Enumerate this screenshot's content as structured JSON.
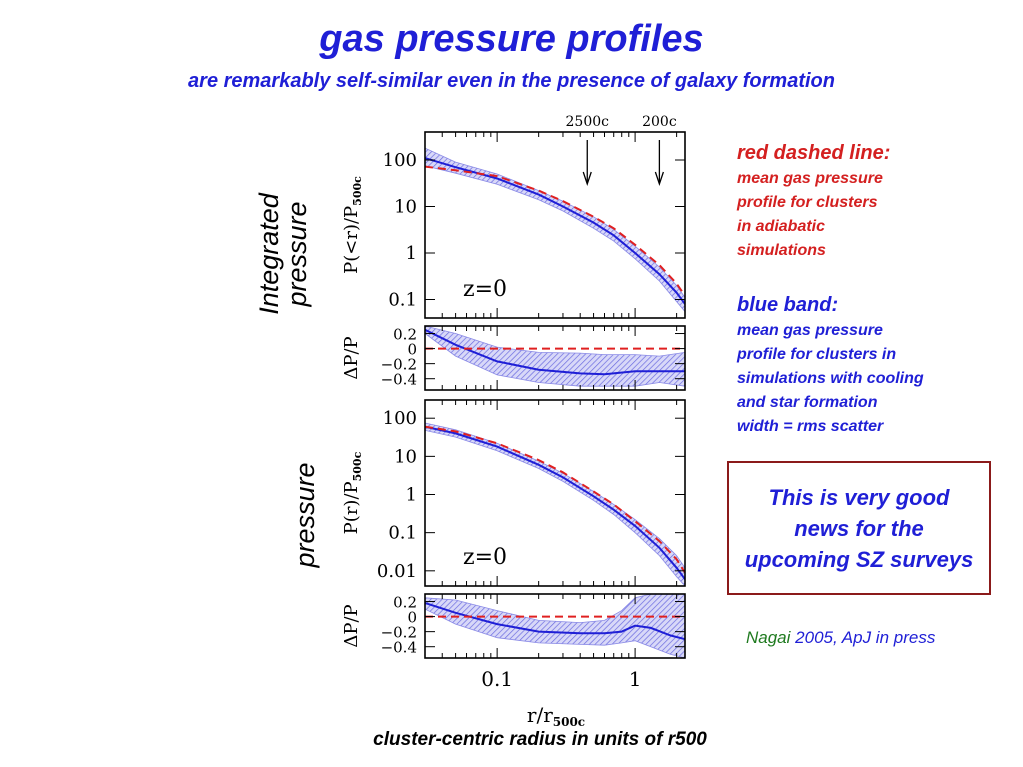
{
  "title": "gas pressure profiles",
  "subtitle": "are remarkably self-similar even in the presence of galaxy formation",
  "side_labels": {
    "integrated": [
      "Integrated",
      "pressure"
    ],
    "pressure": "pressure"
  },
  "notes": {
    "red_title": "red dashed line:",
    "red_lines": [
      "mean gas pressure",
      "profile for clusters",
      "in adiabatic",
      "simulations"
    ],
    "blue_title": "blue band:",
    "blue_lines": [
      "mean gas pressure",
      "profile for clusters in",
      "simulations with cooling",
      "and star formation",
      "width = rms scatter"
    ]
  },
  "box_text": "This is very good news for the upcoming SZ surveys",
  "reference": {
    "author": "Nagai",
    "rest": "2005, ApJ in press"
  },
  "caption": "cluster-centric radius in units of r500",
  "colors": {
    "title_blue": "#1f1fd6",
    "note_red": "#d42020",
    "box_border": "#8b1a1a",
    "ref_green": "#1f7a1f",
    "band": "#8a8ae6",
    "line_blue": "#1f1fd6",
    "dash_red": "#e02020"
  },
  "chart_data": [
    {
      "type": "line",
      "panel": "integrated",
      "xlabel": "r/r500c",
      "ylabel": "P(<r)/P500c",
      "xscale": "log",
      "yscale": "log",
      "xlim": [
        0.03,
        2.3
      ],
      "ylim": [
        0.04,
        400
      ],
      "yticks": [
        "100",
        "10",
        "1",
        "0.1"
      ],
      "annotation": "z=0",
      "markers": [
        {
          "label": "2500c",
          "x": 0.45
        },
        {
          "label": "200c",
          "x": 1.5
        }
      ],
      "x": [
        0.03,
        0.05,
        0.1,
        0.2,
        0.3,
        0.5,
        0.7,
        1.0,
        1.5,
        2.0,
        2.3
      ],
      "series": [
        {
          "role": "band",
          "y": [
            110,
            70,
            40,
            18,
            10,
            4.5,
            2.4,
            1.0,
            0.35,
            0.14,
            0.08
          ],
          "upper": [
            180,
            90,
            50,
            22,
            13,
            6,
            3.2,
            1.4,
            0.5,
            0.2,
            0.11
          ],
          "lower": [
            75,
            52,
            30,
            14,
            8,
            3.4,
            1.8,
            0.75,
            0.25,
            0.09,
            0.055
          ]
        },
        {
          "role": "dashed",
          "y": [
            72,
            60,
            45,
            22,
            13,
            6,
            3.4,
            1.5,
            0.55,
            0.22,
            0.12
          ]
        }
      ]
    },
    {
      "type": "line",
      "panel": "integrated-residual",
      "ylabel": "ΔP/P",
      "xscale": "log",
      "xlim": [
        0.03,
        2.3
      ],
      "ylim": [
        -0.55,
        0.3
      ],
      "yticks": [
        "0.2",
        "0",
        "−0.2",
        "−0.4"
      ],
      "x": [
        0.03,
        0.05,
        0.1,
        0.2,
        0.4,
        0.6,
        1.0,
        1.5,
        2.3
      ],
      "series": [
        {
          "role": "band",
          "y": [
            0.25,
            0.05,
            -0.17,
            -0.28,
            -0.33,
            -0.34,
            -0.3,
            -0.3,
            -0.3
          ],
          "upper": [
            0.3,
            0.2,
            0.02,
            -0.05,
            -0.06,
            -0.08,
            -0.08,
            -0.1,
            -0.05
          ],
          "lower": [
            0.2,
            -0.1,
            -0.35,
            -0.45,
            -0.5,
            -0.5,
            -0.5,
            -0.45,
            -0.5
          ]
        },
        {
          "role": "dashed",
          "y": [
            0,
            0,
            0,
            0,
            0,
            0,
            0,
            0,
            0
          ]
        }
      ]
    },
    {
      "type": "line",
      "panel": "pressure",
      "xlabel": "r/r500c",
      "ylabel": "P(r)/P500c",
      "xscale": "log",
      "yscale": "log",
      "xlim": [
        0.03,
        2.3
      ],
      "ylim": [
        0.004,
        300
      ],
      "yticks": [
        "100",
        "10",
        "1",
        "0.1",
        "0.01"
      ],
      "annotation": "z=0",
      "x": [
        0.03,
        0.05,
        0.1,
        0.2,
        0.3,
        0.5,
        0.7,
        1.0,
        1.5,
        2.0,
        2.3
      ],
      "series": [
        {
          "role": "band",
          "y": [
            60,
            40,
            18,
            6,
            2.8,
            0.9,
            0.4,
            0.15,
            0.04,
            0.012,
            0.006
          ],
          "upper": [
            75,
            50,
            22,
            7.5,
            3.6,
            1.2,
            0.55,
            0.22,
            0.07,
            0.025,
            0.012
          ],
          "lower": [
            48,
            32,
            14,
            4.8,
            2.2,
            0.7,
            0.3,
            0.1,
            0.025,
            0.007,
            0.004
          ]
        },
        {
          "role": "dashed",
          "y": [
            60,
            45,
            22,
            8,
            3.8,
            1.2,
            0.55,
            0.2,
            0.06,
            0.02,
            0.009
          ]
        }
      ]
    },
    {
      "type": "line",
      "panel": "pressure-residual",
      "ylabel": "ΔP/P",
      "xscale": "log",
      "xlim": [
        0.03,
        2.3
      ],
      "ylim": [
        -0.55,
        0.3
      ],
      "yticks": [
        "0.2",
        "0",
        "−0.2",
        "−0.4"
      ],
      "xticks": [
        "0.1",
        "1"
      ],
      "x": [
        0.03,
        0.05,
        0.1,
        0.2,
        0.4,
        0.6,
        0.8,
        1.0,
        1.3,
        1.8,
        2.3
      ],
      "series": [
        {
          "role": "band",
          "y": [
            0.18,
            0.05,
            -0.1,
            -0.2,
            -0.22,
            -0.22,
            -0.2,
            -0.12,
            -0.15,
            -0.25,
            -0.3
          ],
          "upper": [
            0.25,
            0.22,
            0.08,
            -0.05,
            -0.08,
            -0.05,
            0.08,
            0.25,
            0.3,
            0.3,
            0.3
          ],
          "lower": [
            0.1,
            -0.1,
            -0.28,
            -0.35,
            -0.37,
            -0.38,
            -0.35,
            -0.32,
            -0.4,
            -0.5,
            -0.55
          ]
        },
        {
          "role": "dashed",
          "y": [
            0,
            0,
            0,
            0,
            0,
            0,
            0,
            0,
            0,
            0,
            0
          ]
        }
      ]
    }
  ]
}
